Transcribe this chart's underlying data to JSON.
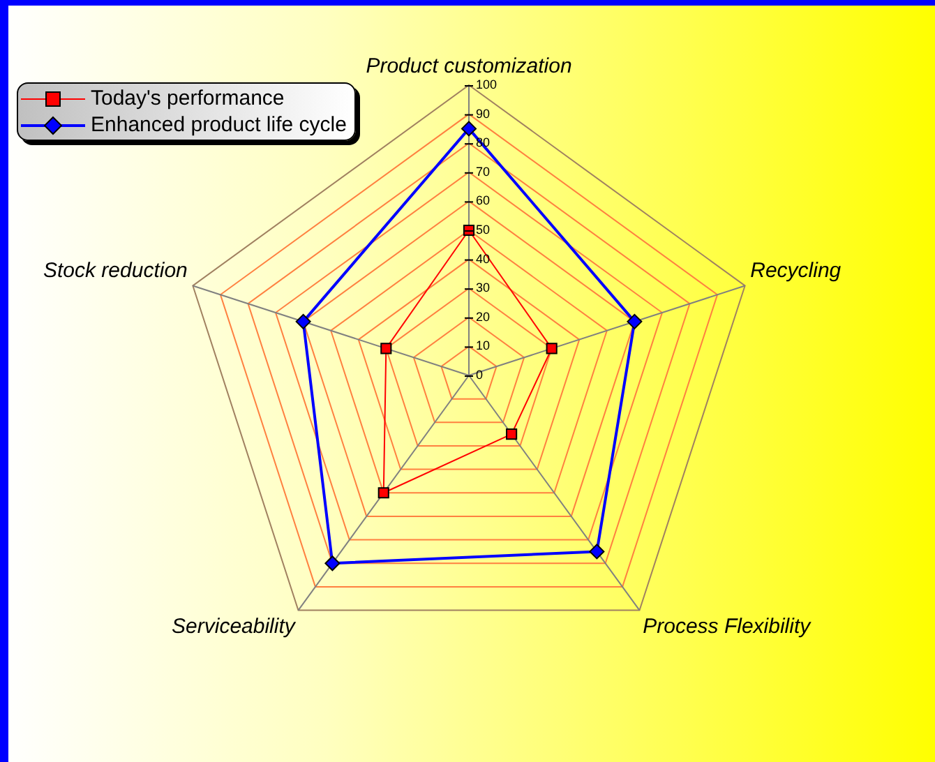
{
  "chart_data": {
    "type": "radar",
    "categories": [
      "Product customization",
      "Recycling",
      "Process Flexibility",
      "Serviceability",
      "Stock reduction"
    ],
    "series": [
      {
        "name": "Today's performance",
        "color": "#ff0000",
        "marker": "square",
        "values": [
          50,
          30,
          25,
          50,
          30
        ]
      },
      {
        "name": "Enhanced product life cycle",
        "color": "#0000ff",
        "marker": "diamond",
        "values": [
          85,
          60,
          75,
          80,
          60
        ]
      }
    ],
    "ylim": [
      0,
      100
    ],
    "yticks": [
      0,
      10,
      20,
      30,
      40,
      50,
      60,
      70,
      80,
      90,
      100
    ],
    "grid": true,
    "legend": "top left"
  }
}
